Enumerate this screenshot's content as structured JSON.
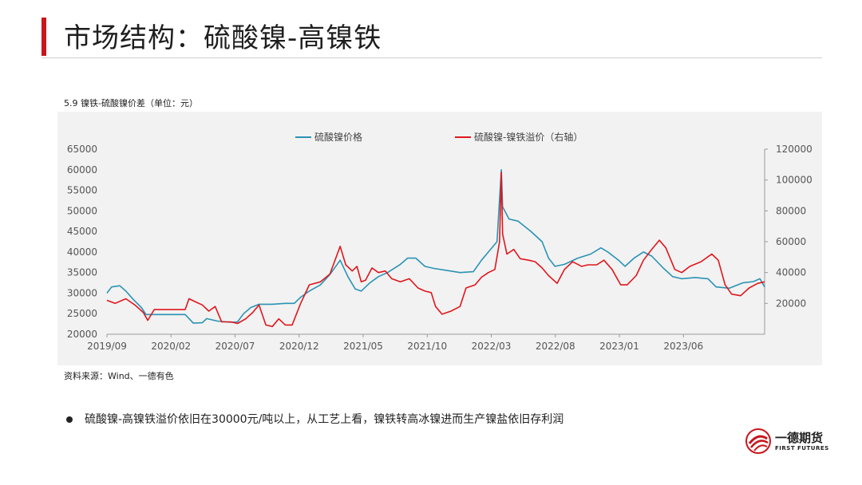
{
  "slide": {
    "title": "市场结构：硫酸镍-高镍铁",
    "chart_caption": "5.9 镍铁-硫酸镍价差（单位：元）",
    "source": "资料来源：Wind、一德有色",
    "bullet": "硫酸镍-高镍铁溢价依旧在30000元/吨以上，从工艺上看，镍铁转高冰镍进而生产镍盐依旧存利润",
    "logo_cn": "一德期货",
    "logo_en": "FIRST FUTURES"
  },
  "colors": {
    "accent": "#c8161d",
    "series_left": "#2a93b4",
    "series_right": "#e0161c"
  },
  "chart_data": {
    "type": "line",
    "title": "",
    "x_tick_labels": [
      "2019/09",
      "2020/02",
      "2020/07",
      "2020/12",
      "2021/05",
      "2021/10",
      "2022/03",
      "2022/08",
      "2023/01",
      "2023/06"
    ],
    "x_range": [
      "2019-09-01",
      "2023-11-10"
    ],
    "y_left": {
      "range": [
        20000,
        65000
      ],
      "ticks": [
        20000,
        25000,
        30000,
        35000,
        40000,
        45000,
        50000,
        55000,
        60000,
        65000
      ]
    },
    "y_right": {
      "range": [
        0,
        120000
      ],
      "ticks": [
        20000,
        40000,
        60000,
        80000,
        100000,
        120000
      ]
    },
    "legend_position": "top",
    "series": [
      {
        "name": "硫酸镍价格",
        "axis": "left",
        "color": "#2a93b4",
        "points": [
          [
            "2019-09-01",
            30000
          ],
          [
            "2019-09-12",
            31500
          ],
          [
            "2019-10-01",
            31800
          ],
          [
            "2019-10-15",
            30500
          ],
          [
            "2019-11-01",
            28500
          ],
          [
            "2019-11-20",
            26500
          ],
          [
            "2019-12-01",
            24800
          ],
          [
            "2020-01-01",
            24800
          ],
          [
            "2020-02-01",
            24800
          ],
          [
            "2020-03-01",
            24800
          ],
          [
            "2020-03-20",
            22700
          ],
          [
            "2020-04-10",
            22800
          ],
          [
            "2020-04-20",
            23800
          ],
          [
            "2020-05-15",
            23200
          ],
          [
            "2020-06-15",
            22900
          ],
          [
            "2020-07-01",
            23000
          ],
          [
            "2020-07-15",
            25000
          ],
          [
            "2020-08-01",
            26500
          ],
          [
            "2020-08-20",
            27300
          ],
          [
            "2020-09-20",
            27300
          ],
          [
            "2020-10-20",
            27500
          ],
          [
            "2020-11-10",
            27500
          ],
          [
            "2020-11-25",
            29000
          ],
          [
            "2020-12-15",
            30500
          ],
          [
            "2021-01-10",
            32000
          ],
          [
            "2021-02-01",
            34500
          ],
          [
            "2021-02-25",
            38000
          ],
          [
            "2021-03-15",
            34000
          ],
          [
            "2021-04-01",
            31000
          ],
          [
            "2021-04-15",
            30500
          ],
          [
            "2021-05-05",
            32500
          ],
          [
            "2021-05-25",
            34000
          ],
          [
            "2021-06-15",
            35000
          ],
          [
            "2021-07-15",
            37000
          ],
          [
            "2021-08-01",
            38500
          ],
          [
            "2021-08-20",
            38500
          ],
          [
            "2021-09-10",
            36500
          ],
          [
            "2021-10-01",
            36000
          ],
          [
            "2021-11-01",
            35500
          ],
          [
            "2021-12-01",
            35000
          ],
          [
            "2022-01-01",
            35200
          ],
          [
            "2022-01-20",
            38000
          ],
          [
            "2022-02-05",
            40000
          ],
          [
            "2022-02-25",
            42500
          ],
          [
            "2022-03-07",
            60000
          ],
          [
            "2022-03-10",
            51000
          ],
          [
            "2022-03-25",
            48000
          ],
          [
            "2022-04-15",
            47500
          ],
          [
            "2022-05-15",
            45000
          ],
          [
            "2022-06-10",
            42500
          ],
          [
            "2022-06-25",
            38500
          ],
          [
            "2022-07-10",
            36500
          ],
          [
            "2022-08-01",
            37000
          ],
          [
            "2022-09-01",
            38500
          ],
          [
            "2022-10-01",
            39500
          ],
          [
            "2022-10-25",
            41000
          ],
          [
            "2022-11-10",
            40000
          ],
          [
            "2022-12-05",
            38000
          ],
          [
            "2022-12-20",
            36500
          ],
          [
            "2023-01-10",
            38500
          ],
          [
            "2023-02-01",
            40000
          ],
          [
            "2023-02-20",
            39000
          ],
          [
            "2023-03-20",
            36000
          ],
          [
            "2023-04-10",
            34000
          ],
          [
            "2023-05-01",
            33500
          ],
          [
            "2023-06-01",
            33800
          ],
          [
            "2023-07-01",
            33500
          ],
          [
            "2023-07-20",
            31500
          ],
          [
            "2023-08-20",
            31200
          ],
          [
            "2023-09-20",
            32500
          ],
          [
            "2023-10-15",
            32800
          ],
          [
            "2023-10-30",
            33500
          ],
          [
            "2023-11-10",
            31500
          ]
        ]
      },
      {
        "name": "硫酸镍-镍铁溢价（右轴）",
        "axis": "right",
        "color": "#e0161c",
        "points": [
          [
            "2019-09-01",
            22000
          ],
          [
            "2019-09-20",
            20000
          ],
          [
            "2019-10-15",
            23000
          ],
          [
            "2019-11-05",
            19000
          ],
          [
            "2019-11-25",
            14000
          ],
          [
            "2019-12-05",
            9000
          ],
          [
            "2019-12-20",
            16000
          ],
          [
            "2020-01-15",
            16000
          ],
          [
            "2020-02-15",
            16000
          ],
          [
            "2020-03-01",
            16000
          ],
          [
            "2020-03-10",
            23000
          ],
          [
            "2020-03-25",
            21000
          ],
          [
            "2020-04-10",
            19000
          ],
          [
            "2020-04-25",
            15000
          ],
          [
            "2020-05-10",
            18000
          ],
          [
            "2020-05-25",
            8000
          ],
          [
            "2020-06-15",
            8000
          ],
          [
            "2020-07-01",
            7000
          ],
          [
            "2020-07-20",
            10000
          ],
          [
            "2020-08-05",
            14000
          ],
          [
            "2020-08-20",
            19000
          ],
          [
            "2020-09-05",
            6000
          ],
          [
            "2020-09-20",
            5000
          ],
          [
            "2020-10-05",
            10000
          ],
          [
            "2020-10-20",
            6000
          ],
          [
            "2020-11-05",
            6000
          ],
          [
            "2020-11-25",
            20000
          ],
          [
            "2020-12-15",
            32000
          ],
          [
            "2021-01-10",
            34000
          ],
          [
            "2021-02-01",
            39000
          ],
          [
            "2021-02-25",
            57000
          ],
          [
            "2021-03-10",
            45000
          ],
          [
            "2021-03-25",
            41000
          ],
          [
            "2021-04-05",
            44000
          ],
          [
            "2021-04-15",
            34000
          ],
          [
            "2021-04-25",
            35000
          ],
          [
            "2021-05-10",
            43000
          ],
          [
            "2021-05-25",
            40000
          ],
          [
            "2021-06-10",
            41000
          ],
          [
            "2021-06-25",
            36000
          ],
          [
            "2021-07-15",
            34000
          ],
          [
            "2021-08-05",
            36000
          ],
          [
            "2021-08-25",
            30000
          ],
          [
            "2021-09-10",
            28000
          ],
          [
            "2021-09-25",
            27000
          ],
          [
            "2021-10-05",
            18000
          ],
          [
            "2021-10-20",
            13000
          ],
          [
            "2021-11-10",
            15000
          ],
          [
            "2021-12-01",
            18000
          ],
          [
            "2021-12-15",
            30000
          ],
          [
            "2022-01-05",
            32000
          ],
          [
            "2022-01-20",
            37000
          ],
          [
            "2022-02-05",
            40000
          ],
          [
            "2022-02-20",
            42000
          ],
          [
            "2022-03-03",
            60000
          ],
          [
            "2022-03-07",
            105000
          ],
          [
            "2022-03-10",
            65000
          ],
          [
            "2022-03-20",
            52000
          ],
          [
            "2022-04-05",
            55000
          ],
          [
            "2022-04-20",
            49000
          ],
          [
            "2022-05-10",
            48000
          ],
          [
            "2022-05-25",
            47000
          ],
          [
            "2022-06-10",
            43000
          ],
          [
            "2022-06-25",
            38000
          ],
          [
            "2022-07-15",
            33000
          ],
          [
            "2022-08-01",
            42000
          ],
          [
            "2022-08-20",
            47000
          ],
          [
            "2022-09-10",
            44000
          ],
          [
            "2022-09-25",
            45000
          ],
          [
            "2022-10-15",
            45000
          ],
          [
            "2022-11-01",
            48000
          ],
          [
            "2022-11-20",
            42000
          ],
          [
            "2022-12-10",
            32000
          ],
          [
            "2022-12-25",
            32000
          ],
          [
            "2023-01-15",
            38000
          ],
          [
            "2023-02-01",
            48000
          ],
          [
            "2023-02-20",
            55000
          ],
          [
            "2023-03-10",
            61000
          ],
          [
            "2023-03-25",
            56000
          ],
          [
            "2023-04-15",
            42000
          ],
          [
            "2023-05-01",
            40000
          ],
          [
            "2023-05-20",
            44000
          ],
          [
            "2023-06-15",
            47000
          ],
          [
            "2023-07-10",
            52000
          ],
          [
            "2023-07-25",
            48000
          ],
          [
            "2023-08-10",
            32000
          ],
          [
            "2023-08-25",
            26000
          ],
          [
            "2023-09-15",
            25000
          ],
          [
            "2023-10-05",
            30000
          ],
          [
            "2023-10-25",
            33000
          ],
          [
            "2023-11-10",
            34000
          ]
        ]
      }
    ]
  }
}
